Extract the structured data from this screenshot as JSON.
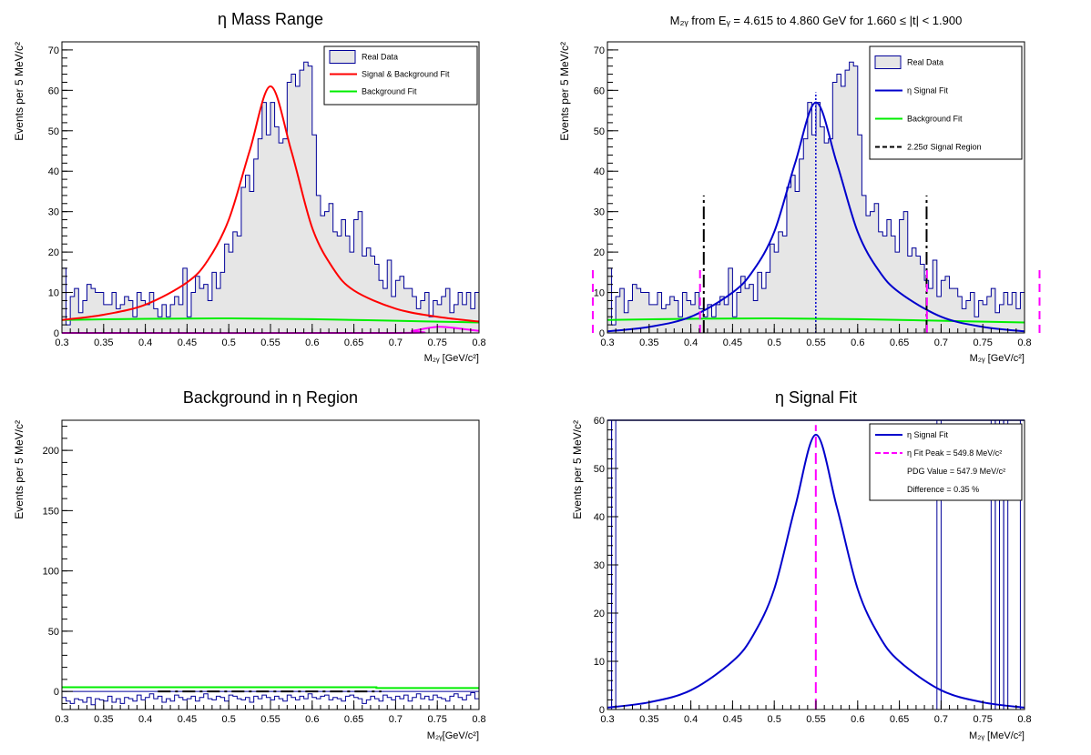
{
  "chart_data": [
    {
      "type": "histogram",
      "title": "η Mass Range",
      "xlabel": "M₂ᵧ [GeV/c²]",
      "ylabel": "Events per 5 MeV/c²",
      "xlim": [
        0.3,
        0.8
      ],
      "ylim": [
        0,
        72
      ],
      "x_ticks": [
        "0.3",
        "0.35",
        "0.4",
        "0.45",
        "0.5",
        "0.55",
        "0.6",
        "0.65",
        "0.7",
        "0.75",
        "0.8"
      ],
      "y_ticks": [
        "0",
        "10",
        "20",
        "30",
        "40",
        "50",
        "60",
        "70"
      ],
      "legend": [
        "Real Data",
        "Signal & Background Fit",
        "Background Fit"
      ],
      "legend_position": "top-right",
      "colors": {
        "data": "#000099",
        "data_fill": "#e6e6e6",
        "fit": "#ff0000",
        "background": "#00ee00",
        "residual": "#ff00ff"
      },
      "bin_width": 0.005,
      "hist": [
        16,
        2,
        9,
        11,
        5,
        8,
        12,
        11,
        10,
        10,
        7,
        7,
        10,
        6,
        7,
        9,
        8,
        4,
        10,
        8,
        7,
        10,
        6,
        4,
        7,
        4,
        7,
        9,
        7,
        16,
        4,
        10,
        14,
        11,
        12,
        8,
        15,
        11,
        15,
        22,
        20,
        25,
        24,
        36,
        39,
        35,
        43,
        48,
        57,
        49,
        57,
        51,
        47,
        48,
        62,
        64,
        61,
        65,
        67,
        66,
        49,
        34,
        29,
        30,
        32,
        25,
        24,
        28,
        24,
        20,
        28,
        30,
        19,
        21,
        19,
        17,
        13,
        11,
        18,
        9,
        13,
        14,
        11,
        11,
        9,
        6,
        8,
        10,
        4,
        8,
        7,
        9,
        11,
        5,
        7,
        10,
        7,
        10,
        6,
        10,
        7
      ],
      "fit": [
        [
          0.3,
          3.2
        ],
        [
          0.35,
          4.5
        ],
        [
          0.4,
          7.0
        ],
        [
          0.45,
          12.5
        ],
        [
          0.475,
          18
        ],
        [
          0.5,
          28
        ],
        [
          0.525,
          45
        ],
        [
          0.55,
          61
        ],
        [
          0.575,
          45
        ],
        [
          0.6,
          26
        ],
        [
          0.625,
          16
        ],
        [
          0.65,
          10.5
        ],
        [
          0.7,
          6
        ],
        [
          0.75,
          4
        ],
        [
          0.8,
          2.8
        ]
      ],
      "background": [
        [
          0.3,
          3.2
        ],
        [
          0.4,
          3.5
        ],
        [
          0.5,
          3.6
        ],
        [
          0.6,
          3.4
        ],
        [
          0.7,
          3.0
        ],
        [
          0.8,
          2.6
        ]
      ],
      "residual": [
        [
          0.3,
          0
        ],
        [
          0.7,
          0
        ],
        [
          0.72,
          0.5
        ],
        [
          0.75,
          1.5
        ],
        [
          0.78,
          1.0
        ],
        [
          0.8,
          0.5
        ]
      ]
    },
    {
      "type": "histogram",
      "title": "M₂ᵧ from Eᵧ = 4.615 to 4.860 GeV for 1.660 ≤ |t| < 1.900",
      "xlabel": "M₂ᵧ [GeV/c²]",
      "ylabel": "Events per 5 MeV/c²",
      "xlim": [
        0.3,
        0.8
      ],
      "ylim": [
        0,
        72
      ],
      "x_ticks": [
        "0.3",
        "0.35",
        "0.4",
        "0.45",
        "0.5",
        "0.55",
        "0.6",
        "0.65",
        "0.7",
        "0.75",
        "0.8"
      ],
      "y_ticks": [
        "0",
        "10",
        "20",
        "30",
        "40",
        "50",
        "60",
        "70"
      ],
      "legend": [
        "Real Data",
        "η Signal Fit",
        "Background Fit",
        "2.25σ Signal Region"
      ],
      "legend_position": "top-right",
      "colors": {
        "data": "#000099",
        "data_fill": "#e6e6e6",
        "signal": "#0000cc",
        "background": "#00ee00",
        "region": "#000000",
        "marker": "#ff00ff"
      },
      "bin_width": 0.005,
      "hist": [
        16,
        2,
        9,
        11,
        5,
        8,
        12,
        11,
        10,
        10,
        7,
        7,
        10,
        6,
        7,
        9,
        8,
        4,
        10,
        8,
        7,
        10,
        6,
        4,
        7,
        4,
        7,
        9,
        7,
        16,
        4,
        10,
        14,
        11,
        12,
        8,
        15,
        11,
        15,
        22,
        20,
        25,
        24,
        36,
        39,
        35,
        43,
        48,
        57,
        49,
        57,
        51,
        47,
        48,
        62,
        64,
        61,
        65,
        67,
        66,
        49,
        34,
        29,
        30,
        32,
        25,
        24,
        28,
        24,
        20,
        28,
        30,
        19,
        21,
        19,
        17,
        13,
        11,
        18,
        9,
        13,
        14,
        11,
        11,
        9,
        6,
        8,
        10,
        4,
        8,
        7,
        9,
        11,
        5,
        7,
        10,
        7,
        10,
        6,
        10,
        7
      ],
      "signal": [
        [
          0.3,
          0.4
        ],
        [
          0.35,
          1.5
        ],
        [
          0.4,
          4
        ],
        [
          0.45,
          10
        ],
        [
          0.475,
          15.5
        ],
        [
          0.5,
          25
        ],
        [
          0.525,
          42
        ],
        [
          0.55,
          57
        ],
        [
          0.575,
          42
        ],
        [
          0.6,
          25
        ],
        [
          0.625,
          15.5
        ],
        [
          0.65,
          10
        ],
        [
          0.7,
          4
        ],
        [
          0.75,
          1.5
        ],
        [
          0.8,
          0.4
        ]
      ],
      "background": [
        [
          0.3,
          3.2
        ],
        [
          0.4,
          3.5
        ],
        [
          0.5,
          3.6
        ],
        [
          0.6,
          3.4
        ],
        [
          0.7,
          3.0
        ],
        [
          0.8,
          2.6
        ]
      ],
      "peak_x": 0.5498,
      "signal_region": [
        0.4155,
        0.6826
      ],
      "magenta_marks_x": [
        0.2825,
        0.411,
        0.683,
        0.818
      ]
    },
    {
      "type": "histogram",
      "title": "Background in η Region",
      "xlabel": "M₂ᵧ[GeV/c²]",
      "ylabel": "Events per 5 MeV/c²",
      "xlim": [
        0.3,
        0.8
      ],
      "ylim": [
        -15,
        225
      ],
      "x_ticks": [
        "0.3",
        "0.35",
        "0.4",
        "0.45",
        "0.5",
        "0.55",
        "0.6",
        "0.65",
        "0.7",
        "0.75",
        "0.8"
      ],
      "y_ticks": [
        "0",
        "50",
        "100",
        "150",
        "200"
      ],
      "colors": {
        "data": "#000099",
        "background": "#00ee00",
        "region": "#000000"
      },
      "bin_width": 0.005,
      "hist": [
        -5,
        -8,
        -10,
        -6,
        -7,
        -9,
        -5,
        -11,
        -6,
        -7,
        -8,
        -4,
        -9,
        -6,
        -10,
        -5,
        -6,
        -8,
        -3,
        -7,
        -5,
        -2,
        -6,
        -4,
        -9,
        -6,
        -8,
        -3,
        -5,
        -7,
        -6,
        -4,
        -8,
        -5,
        -2,
        -6,
        -7,
        -4,
        -5,
        -8,
        -3,
        -4,
        -6,
        -7,
        -5,
        -9,
        -4,
        -6,
        -3,
        -5,
        -7,
        -4,
        -6,
        -8,
        -3,
        -5,
        -7,
        -4,
        -6,
        -2,
        -5,
        -6,
        -4,
        -3,
        -7,
        -5,
        -6,
        -8,
        -4,
        -3,
        -5,
        -6,
        -10,
        -7,
        -4,
        -6,
        -8,
        -3,
        -5,
        -7,
        -4,
        -6,
        -3,
        -8,
        -5,
        -2,
        -6,
        -4,
        -7,
        -3,
        -5,
        -6,
        -8,
        -4,
        -2,
        -5,
        -7,
        -3,
        -1,
        -6
      ],
      "background": [
        [
          0.3,
          3.5
        ],
        [
          0.677,
          3.5
        ],
        [
          0.677,
          2.8
        ],
        [
          0.8,
          2.8
        ]
      ],
      "region_line_y": 0,
      "region_range": [
        0.415,
        0.683
      ]
    },
    {
      "type": "line",
      "title": "η Signal Fit",
      "xlabel": "M₂ᵧ [MeV/c²]",
      "ylabel": "Events per 5 MeV/c²",
      "xlim": [
        0.3,
        0.8
      ],
      "ylim": [
        0,
        60
      ],
      "x_ticks": [
        "0.3",
        "0.35",
        "0.4",
        "0.45",
        "0.5",
        "0.55",
        "0.6",
        "0.65",
        "0.7",
        "0.75",
        "0.8"
      ],
      "y_ticks": [
        "0",
        "10",
        "20",
        "30",
        "40",
        "50",
        "60"
      ],
      "legend": [
        "η Signal Fit",
        "η Fit Peak = 549.8 MeV/c²",
        "PDG Value = 547.9 MeV/c²",
        "Difference = 0.35 %"
      ],
      "legend_position": "top-right",
      "colors": {
        "signal": "#0000cc",
        "peak": "#ff00ff",
        "boxes": "#000099"
      },
      "signal": [
        [
          0.3,
          0.4
        ],
        [
          0.35,
          1.5
        ],
        [
          0.4,
          4
        ],
        [
          0.45,
          10
        ],
        [
          0.475,
          15.5
        ],
        [
          0.5,
          25
        ],
        [
          0.525,
          42
        ],
        [
          0.55,
          57
        ],
        [
          0.575,
          42
        ],
        [
          0.6,
          25
        ],
        [
          0.625,
          15.5
        ],
        [
          0.65,
          10
        ],
        [
          0.7,
          4
        ],
        [
          0.75,
          1.5
        ],
        [
          0.8,
          0.4
        ]
      ],
      "peak_x": 0.5498,
      "tall_bins_x": [
        0.3,
        0.305,
        0.695,
        0.76,
        0.765,
        0.77,
        0.775,
        0.795
      ]
    }
  ]
}
